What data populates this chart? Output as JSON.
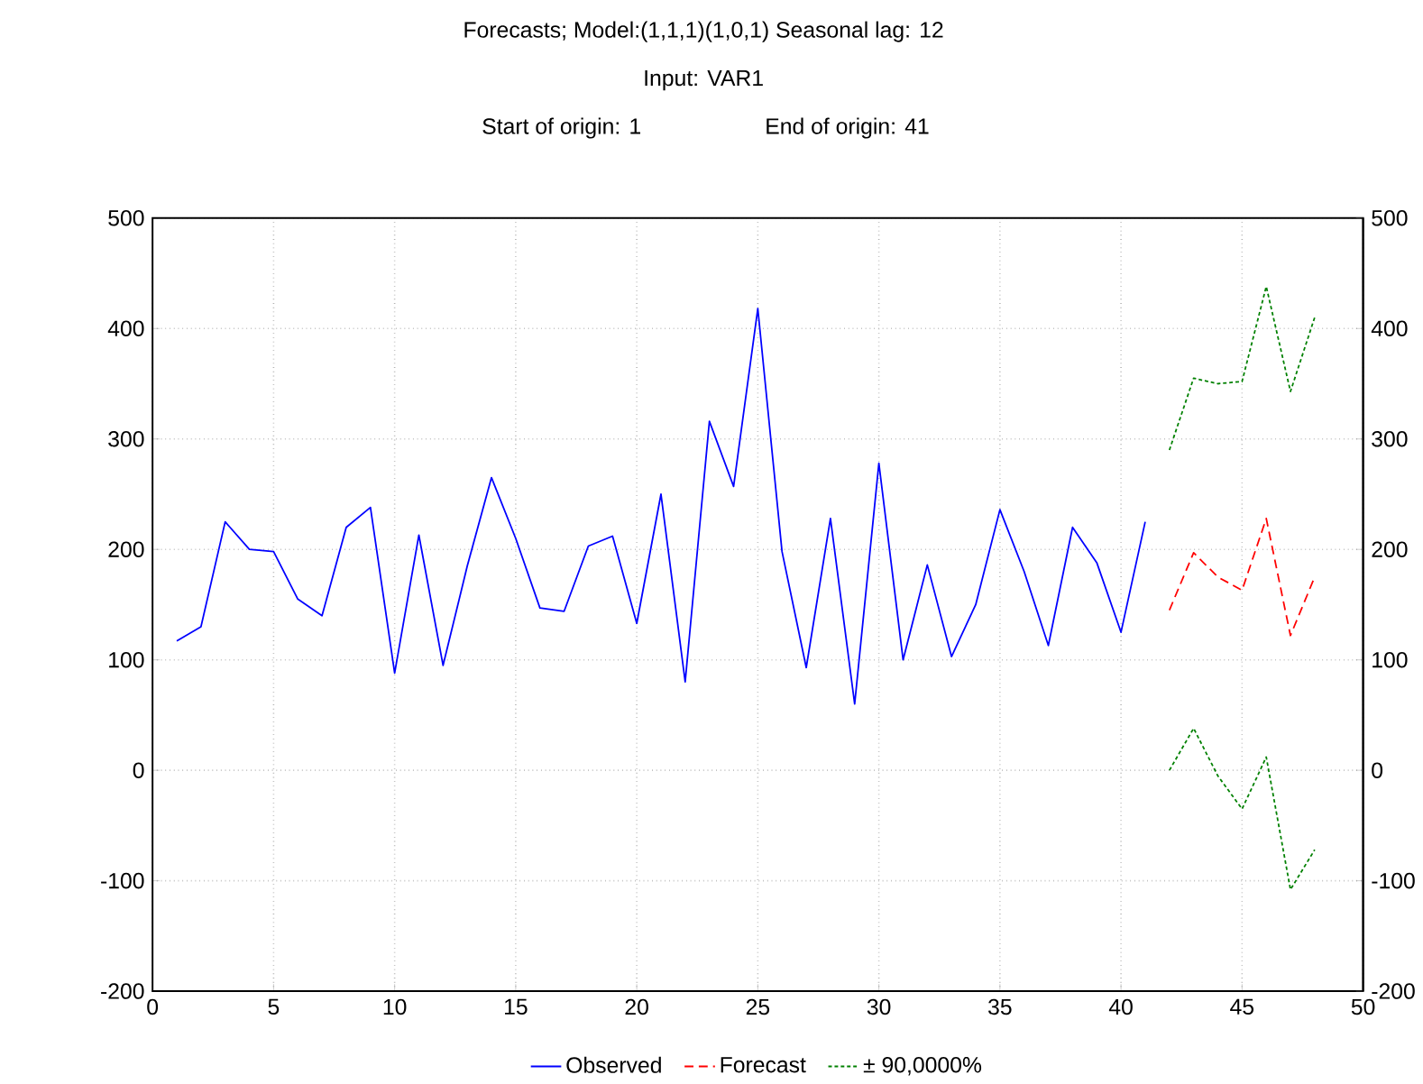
{
  "chart_data": {
    "type": "line",
    "title": "Forecasts; Model:(1,1,1)(1,0,1) Seasonal lag: 12",
    "subtitle": "Input: VAR1",
    "annotations": [
      "Start of origin: 1",
      "End of origin: 41"
    ],
    "series": [
      {
        "name": "Observed",
        "color": "#0000ff",
        "line_style": "solid",
        "x": [
          1,
          2,
          3,
          4,
          5,
          6,
          7,
          8,
          9,
          10,
          11,
          12,
          13,
          14,
          15,
          16,
          17,
          18,
          19,
          20,
          21,
          22,
          23,
          24,
          25,
          26,
          27,
          28,
          29,
          30,
          31,
          32,
          33,
          34,
          35,
          36,
          37,
          38,
          39,
          40,
          41
        ],
        "values": [
          117,
          130,
          225,
          200,
          198,
          155,
          140,
          220,
          238,
          88,
          213,
          95,
          185,
          265,
          210,
          147,
          144,
          203,
          212,
          133,
          250,
          80,
          316,
          257,
          418,
          198,
          93,
          228,
          60,
          278,
          100,
          186,
          103,
          150,
          236,
          180,
          113,
          220,
          188,
          125,
          225
        ]
      },
      {
        "name": "Forecast",
        "color": "#ff0000",
        "line_style": "dashed",
        "x": [
          42,
          43,
          44,
          45,
          46,
          47,
          48
        ],
        "values": [
          145,
          197,
          175,
          163,
          228,
          122,
          175
        ]
      },
      {
        "name": "± 90,0000%",
        "color": "#008000",
        "line_style": "dotted",
        "x": [
          42,
          43,
          44,
          45,
          46,
          47,
          48
        ],
        "values": [
          290,
          355,
          350,
          352,
          438,
          343,
          410
        ]
      },
      {
        "color": "#008000",
        "line_style": "dotted",
        "x": [
          42,
          43,
          44,
          45,
          46,
          47,
          48
        ],
        "values": [
          0,
          38,
          -5,
          -35,
          12,
          -108,
          -72
        ]
      }
    ],
    "xlim": [
      0,
      50
    ],
    "xticks": [
      0,
      5,
      10,
      15,
      20,
      25,
      30,
      35,
      40,
      45,
      50
    ],
    "ylim": [
      -200,
      500
    ],
    "yticks": [
      -200,
      -100,
      0,
      100,
      200,
      300,
      400,
      500
    ],
    "y2lim": [
      -200,
      500
    ],
    "y2ticks": [
      -200,
      -100,
      0,
      100,
      200,
      300,
      400,
      500
    ],
    "grid": true,
    "legend": "bottom",
    "marker": "none"
  }
}
